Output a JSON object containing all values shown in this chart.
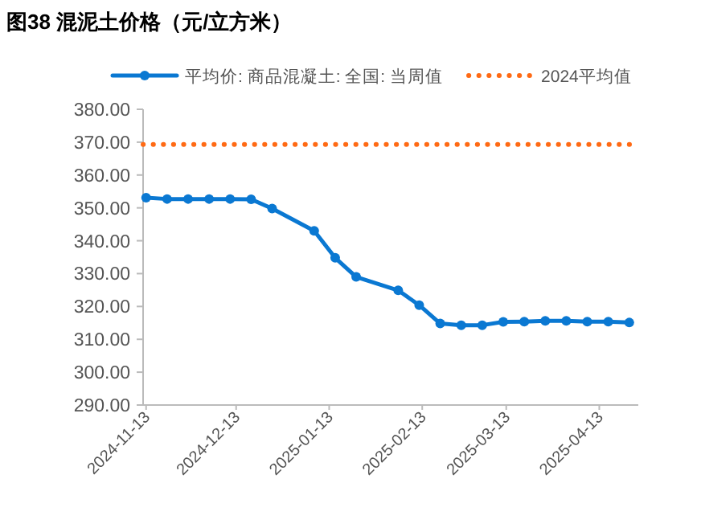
{
  "chart_data": {
    "type": "line",
    "title": "图38 混泥土价格（元/立方米）",
    "x": [
      "2024-11-13",
      "2024-11-20",
      "2024-11-27",
      "2024-12-04",
      "2024-12-11",
      "2024-12-18",
      "2024-12-25",
      "2025-01-08",
      "2025-01-15",
      "2025-01-22",
      "2025-02-05",
      "2025-02-12",
      "2025-02-19",
      "2025-02-26",
      "2025-03-05",
      "2025-03-12",
      "2025-03-19",
      "2025-03-26",
      "2025-04-02",
      "2025-04-09",
      "2025-04-16",
      "2025-04-23"
    ],
    "series": [
      {
        "name": "平均价: 商品混凝土: 全国: 当周值",
        "color": "#0a78d2",
        "values": [
          353.1,
          352.7,
          352.7,
          352.7,
          352.7,
          352.6,
          349.8,
          343.0,
          334.8,
          329.0,
          324.9,
          320.4,
          314.8,
          314.3,
          314.3,
          315.3,
          315.4,
          315.6,
          315.6,
          315.4,
          315.4,
          315.1
        ]
      }
    ],
    "ref_lines": [
      {
        "axis": "y",
        "value": 369.3,
        "label": "2024平均值",
        "color": "#ff6a14",
        "line_style": "dotted"
      }
    ],
    "xlim": [
      "2024-11-12",
      "2025-04-26"
    ],
    "xticks": [
      "2024-11-13",
      "2024-12-13",
      "2025-01-13",
      "2025-02-13",
      "2025-03-13",
      "2025-04-13"
    ],
    "ylim": [
      290,
      380
    ],
    "yticks": [
      {
        "value": 290,
        "label": "290.00"
      },
      {
        "value": 300,
        "label": "300.00"
      },
      {
        "value": 310,
        "label": "310.00"
      },
      {
        "value": 320,
        "label": "320.00"
      },
      {
        "value": 330,
        "label": "330.00"
      },
      {
        "value": 340,
        "label": "340.00"
      },
      {
        "value": 350,
        "label": "350.00"
      },
      {
        "value": 360,
        "label": "360.00"
      },
      {
        "value": 370,
        "label": "370.00"
      },
      {
        "value": 380,
        "label": "380.00"
      }
    ],
    "grid": false,
    "legend": "top",
    "marker": "circle",
    "line_style": "solid"
  }
}
